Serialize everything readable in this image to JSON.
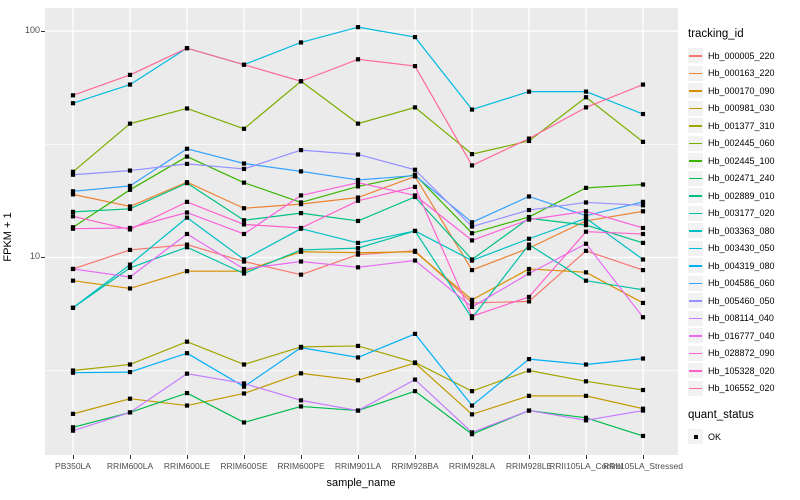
{
  "figure": {
    "background": "#FFFFFF",
    "panel_background": "#EBEBEB",
    "grid_color": "#FFFFFF",
    "point_color": "#000000",
    "tick_label_color": "#4D4D4D"
  },
  "y_axis": {
    "title": "FPKM + 1",
    "tick_labels": [
      "100",
      "10"
    ]
  },
  "x_axis": {
    "title": "sample_name"
  },
  "legend": {
    "tracking_title": "tracking_id",
    "quant_title": "quant_status",
    "quant_items": [
      {
        "label": "OK",
        "marker": "black-square"
      }
    ]
  },
  "chart_data": {
    "type": "line",
    "title": "",
    "xlabel": "sample_name",
    "ylabel": "FPKM + 1",
    "y_scale": "log10",
    "y_major_ticks": [
      10,
      100
    ],
    "y_minor_gridlines": [
      3.162,
      31.62
    ],
    "grid": true,
    "legend_position": "right",
    "point_marker": {
      "shape": "square",
      "color": "#000000",
      "meaning": "quant_status OK"
    },
    "categories": [
      "PB350LA",
      "RRIM600LA",
      "RRIM600LE",
      "RRIM600SE",
      "RRIM600PE",
      "RRIM901LA",
      "RRIM928BA",
      "RRIM928LA",
      "RRIM928LE",
      "RRII105LA_Control",
      "RRII105LA_Stressed"
    ],
    "series": [
      {
        "name": "Hb_000005_220",
        "color": "#F8766D",
        "values": [
          8.9,
          10.8,
          11.4,
          9.6,
          8.4,
          10.3,
          10.7,
          6.3,
          6.4,
          10.7,
          8.8
        ]
      },
      {
        "name": "Hb_000163_220",
        "color": "#EB8335",
        "values": [
          19.0,
          16.8,
          21.5,
          16.5,
          17.2,
          18.4,
          22.8,
          8.8,
          11.0,
          14.5,
          16.0
        ]
      },
      {
        "name": "Hb_000170_090",
        "color": "#D89000",
        "values": [
          7.9,
          7.3,
          8.7,
          8.7,
          10.6,
          10.5,
          10.6,
          6.5,
          8.9,
          8.6,
          6.3
        ]
      },
      {
        "name": "Hb_000981_030",
        "color": "#C09B00",
        "values": [
          2.04,
          2.38,
          2.22,
          2.51,
          3.08,
          2.87,
          3.42,
          2.03,
          2.45,
          2.45,
          2.15
        ]
      },
      {
        "name": "Hb_001377_310",
        "color": "#A3A500",
        "values": [
          3.17,
          3.37,
          4.25,
          3.37,
          4.03,
          4.07,
          3.44,
          2.57,
          3.17,
          2.84,
          2.6
        ]
      },
      {
        "name": "Hb_002445_060",
        "color": "#7CAE00",
        "values": [
          23.9,
          39.0,
          45.5,
          37.0,
          60.0,
          39.0,
          46.0,
          28.6,
          32.7,
          51.0,
          32.4
        ]
      },
      {
        "name": "Hb_002445_100",
        "color": "#39B600",
        "values": [
          13.6,
          19.9,
          27.9,
          21.4,
          17.5,
          20.6,
          23.2,
          12.8,
          15.1,
          20.3,
          21.0
        ]
      },
      {
        "name": "Hb_002471_240",
        "color": "#00BB4E",
        "values": [
          1.78,
          2.07,
          2.52,
          1.87,
          2.2,
          2.11,
          2.57,
          1.66,
          2.11,
          1.96,
          1.63
        ]
      },
      {
        "name": "Hb_002889_010",
        "color": "#00C087",
        "values": [
          15.9,
          16.4,
          21.3,
          14.6,
          15.7,
          14.5,
          18.5,
          9.8,
          14.9,
          13.9,
          11.6
        ]
      },
      {
        "name": "Hb_003177_020",
        "color": "#00C1A3",
        "values": [
          6.0,
          9.0,
          11.1,
          8.5,
          10.8,
          11.0,
          13.1,
          5.4,
          11.4,
          7.9,
          7.2
        ]
      },
      {
        "name": "Hb_003363_080",
        "color": "#00BFC4",
        "values": [
          6.0,
          9.3,
          15.0,
          9.8,
          13.4,
          11.6,
          13.1,
          9.7,
          12.1,
          14.9,
          9.8
        ]
      },
      {
        "name": "Hb_003430_050",
        "color": "#00BAE0",
        "values": [
          48.0,
          58.0,
          84.0,
          71.0,
          89.0,
          104.0,
          94.0,
          45.0,
          54.0,
          54.0,
          43.0
        ]
      },
      {
        "name": "Hb_004319_080",
        "color": "#00B0F6",
        "values": [
          3.1,
          3.12,
          3.78,
          2.69,
          4.0,
          3.62,
          4.6,
          2.22,
          3.56,
          3.37,
          3.58
        ]
      },
      {
        "name": "Hb_004586_060",
        "color": "#35A2FF",
        "values": [
          19.6,
          20.7,
          30.2,
          26.0,
          24.0,
          22.0,
          23.0,
          14.3,
          18.6,
          15.3,
          17.6
        ]
      },
      {
        "name": "Hb_005460_050",
        "color": "#9590FF",
        "values": [
          23.2,
          24.2,
          25.9,
          24.6,
          29.8,
          28.5,
          24.4,
          13.7,
          16.2,
          17.5,
          17.0
        ]
      },
      {
        "name": "Hb_008114_040",
        "color": "#C77CFF",
        "values": [
          1.72,
          2.07,
          3.07,
          2.78,
          2.34,
          2.11,
          2.89,
          1.69,
          2.11,
          1.91,
          2.11
        ]
      },
      {
        "name": "Hb_016777_040",
        "color": "#E76BF3",
        "values": [
          8.9,
          8.2,
          12.7,
          8.9,
          9.6,
          9.05,
          9.7,
          6.05,
          8.5,
          11.5,
          5.45
        ]
      },
      {
        "name": "Hb_028872_090",
        "color": "#FA62DB",
        "values": [
          13.4,
          13.5,
          15.8,
          12.7,
          18.8,
          21.4,
          18.8,
          11.9,
          14.7,
          16.0,
          13.5
        ]
      },
      {
        "name": "Hb_105328_020",
        "color": "#FF61CC",
        "values": [
          15.2,
          13.3,
          17.6,
          14.0,
          13.5,
          17.8,
          20.5,
          5.5,
          6.7,
          13.0,
          12.7
        ]
      },
      {
        "name": "Hb_106552_020",
        "color": "#FF6A98",
        "values": [
          52.0,
          64.0,
          84.0,
          71.0,
          60.0,
          75.0,
          70.0,
          25.5,
          33.5,
          46.0,
          58.0
        ]
      }
    ]
  }
}
